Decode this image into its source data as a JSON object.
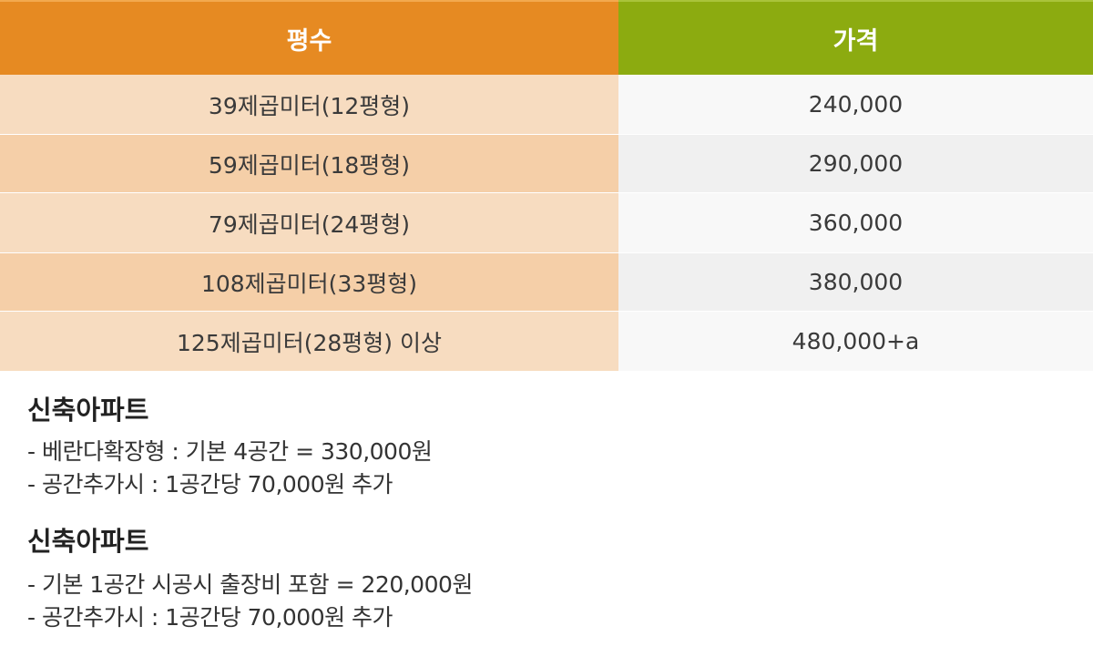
{
  "table": {
    "headers": {
      "size": "평수",
      "price": "가격"
    },
    "rows": [
      {
        "size": "39제곱미터(12평형)",
        "price": "240,000"
      },
      {
        "size": "59제곱미터(18평형)",
        "price": "290,000"
      },
      {
        "size": "79제곱미터(24평형)",
        "price": "360,000"
      },
      {
        "size": "108제곱미터(33평형)",
        "price": "380,000"
      },
      {
        "size": "125제곱미터(28평형) 이상",
        "price": "480,000+a"
      }
    ]
  },
  "notes": [
    {
      "title": "신축아파트",
      "lines": [
        "- 베란다확장형 : 기본 4공간 = 330,000원",
        "- 공간추가시 : 1공간당 70,000원 추가"
      ]
    },
    {
      "title": "신축아파트",
      "lines": [
        "- 기본 1공간 시공시 출장비 포함 = 220,000원",
        "- 공간추가시 : 1공간당 70,000원 추가"
      ]
    }
  ],
  "colors": {
    "size_header": "#e68a22",
    "price_header": "#8cab10",
    "size_cell_light": "#f7dcc0",
    "size_cell_dark": "#f5cfa8",
    "price_cell_light": "#f8f8f8",
    "price_cell_dark": "#f0f0f0"
  }
}
